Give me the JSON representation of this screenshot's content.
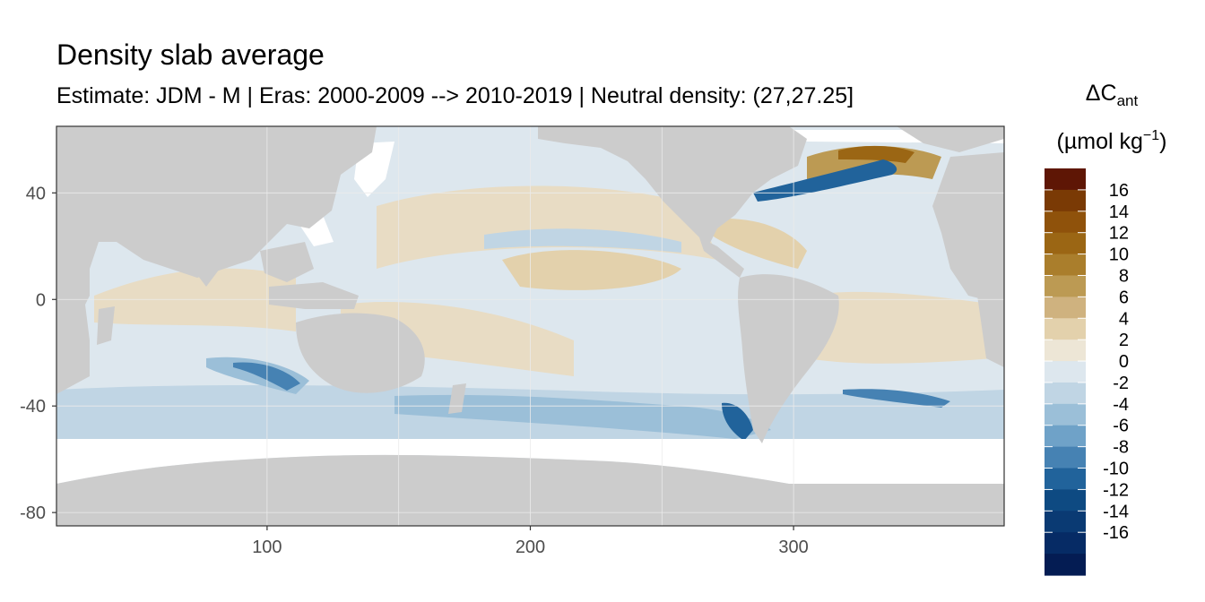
{
  "title": "Density slab average",
  "subtitle": "Estimate: JDM - M | Eras: 2000-2009 --> 2010-2019 | Neutral density: (27,27.25]",
  "legend": {
    "symbol": "ΔC",
    "symbol_sub": "ant",
    "unit_open": "(µmol kg",
    "unit_sup": "−1",
    "unit_close": ")",
    "labels": [
      "16",
      "14",
      "12",
      "10",
      "8",
      "6",
      "4",
      "2",
      "0",
      "-2",
      "-4",
      "-6",
      "-8",
      "-10",
      "-12",
      "-14",
      "-16"
    ],
    "colors": [
      "#5e1605",
      "#7a3a05",
      "#8f520b",
      "#9b6614",
      "#aa7e2c",
      "#bc9a53",
      "#cfb27f",
      "#e3d1ac",
      "#ede6d6",
      "#dde7ee",
      "#c0d5e4",
      "#9bbfd8",
      "#6fa2c8",
      "#4682b3",
      "#21639b",
      "#0e4a82",
      "#0a3a73",
      "#062b65",
      "#041c53"
    ]
  },
  "chart_data": {
    "type": "heatmap",
    "title": "Density slab average",
    "subtitle": "Estimate: JDM - M | Eras: 2000-2009 --> 2010-2019 | Neutral density: (27,27.25]",
    "xlabel": "",
    "ylabel": "",
    "xlim": [
      20,
      380
    ],
    "ylim": [
      -85,
      65
    ],
    "x_ticks": [
      100,
      200,
      300
    ],
    "y_ticks": [
      40,
      0,
      -40,
      -80
    ],
    "grid": true,
    "land_color": "#cccccc",
    "no_data_color": "#ffffff",
    "colorbar_labels": [
      "16",
      "14",
      "12",
      "10",
      "8",
      "6",
      "4",
      "2",
      "0",
      "-2",
      "-4",
      "-6",
      "-8",
      "-10",
      "-12",
      "-14",
      "-16"
    ],
    "colorbar_position": "right"
  }
}
